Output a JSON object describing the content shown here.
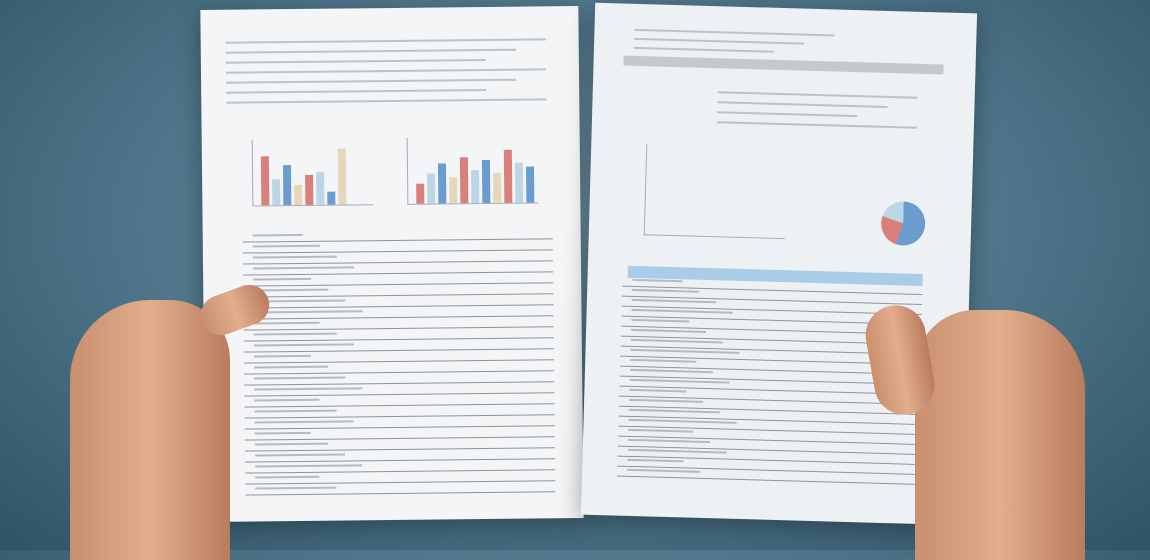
{
  "colors": {
    "background": "#4d7488",
    "paper": "#f3f5f6",
    "bar_red": "#d9807a",
    "bar_blue": "#6b9cd0",
    "bar_light": "#bcd6e6",
    "bar_beige": "#e6d7b8",
    "table_header_blue": "#a9cde6",
    "skin": "#dca283"
  },
  "scene": {
    "left_paper_charts": [
      "bar-chart",
      "bar-chart"
    ],
    "right_paper_charts": [
      "line-chart",
      "pie-chart"
    ]
  }
}
